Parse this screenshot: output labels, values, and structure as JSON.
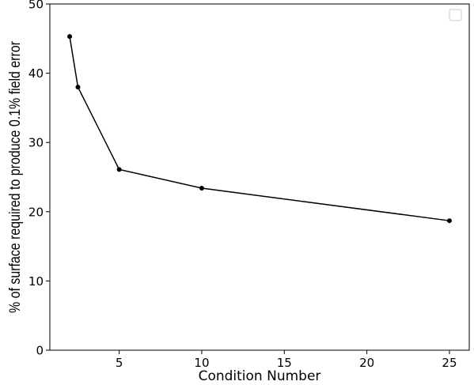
{
  "chart_data": {
    "type": "line",
    "title": "",
    "xlabel": "Condition Number",
    "ylabel": "% of surface required to produce 0.1% field error",
    "xlim": [
      0.8,
      26.2
    ],
    "ylim": [
      0,
      50
    ],
    "xticks": [
      5,
      10,
      15,
      20,
      25
    ],
    "xtick_labels": [
      "5",
      "10",
      "15",
      "20",
      "25"
    ],
    "yticks": [
      0,
      10,
      20,
      30,
      40,
      50
    ],
    "ytick_labels": [
      "0",
      "10",
      "20",
      "30",
      "40",
      "50"
    ],
    "grid": false,
    "legend": {
      "placement": "top-right",
      "entries": []
    },
    "series": [
      {
        "color": "#000000",
        "marker": "circle",
        "x": [
          2,
          2.5,
          5,
          10,
          25
        ],
        "y": [
          45.3,
          38.0,
          26.1,
          23.4,
          18.7
        ]
      }
    ]
  }
}
